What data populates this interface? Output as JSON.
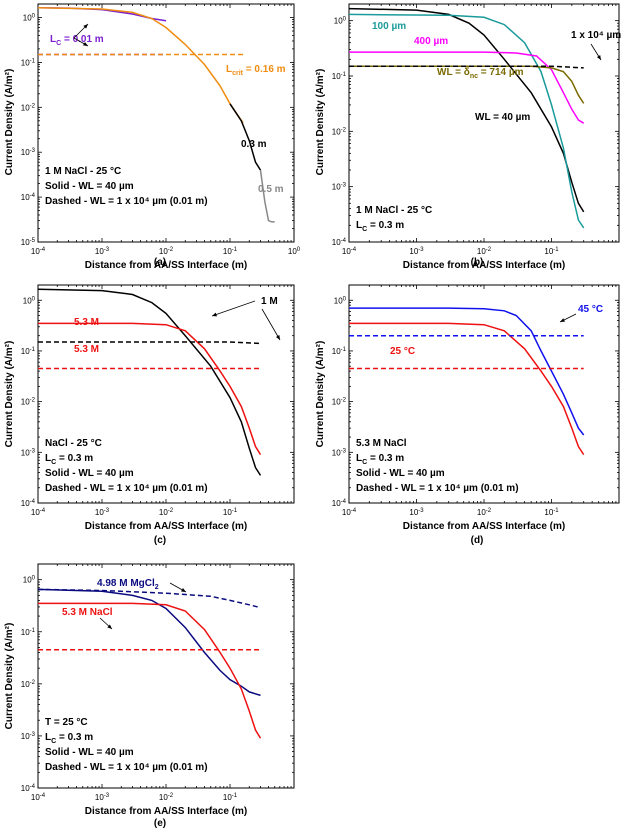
{
  "chart_data": [
    {
      "id": "a",
      "type": "line",
      "panel_label": "(a)",
      "xlabel": "Distance from AA/SS Interface (m)",
      "ylabel": "Current Density (A/m²)",
      "xscale": "log",
      "yscale": "log",
      "xlim": [
        0.0001,
        1
      ],
      "ylim": [
        1e-05,
        2
      ],
      "x_ticks": [
        0.0001,
        0.001,
        0.01,
        0.1,
        1
      ],
      "y_ticks": [
        1e-05,
        0.0001,
        0.001,
        0.01,
        0.1,
        1
      ],
      "series": [
        {
          "color": "#7a1fd0",
          "style": "solid",
          "x": [
            0.0001,
            0.0003,
            0.001,
            0.003,
            0.006,
            0.01
          ],
          "y": [
            1.65,
            1.62,
            1.5,
            1.2,
            0.95,
            0.85
          ]
        },
        {
          "color": "#7a1fd0",
          "style": "dashed",
          "x": [
            0.0001,
            0.001,
            0.01
          ],
          "y": [
            0.15,
            0.15,
            0.15
          ]
        },
        {
          "color": "#f08c10",
          "style": "solid",
          "x": [
            0.0001,
            0.001,
            0.003,
            0.006,
            0.01,
            0.02,
            0.04,
            0.07,
            0.1,
            0.16
          ],
          "y": [
            1.65,
            1.55,
            1.3,
            0.95,
            0.6,
            0.25,
            0.09,
            0.03,
            0.012,
            0.0045
          ]
        },
        {
          "color": "#f08c10",
          "style": "dashed",
          "x": [
            0.0001,
            0.01,
            0.16
          ],
          "y": [
            0.15,
            0.15,
            0.15
          ]
        },
        {
          "color": "#000000",
          "style": "solid",
          "x": [
            0.1,
            0.15,
            0.2,
            0.25,
            0.3
          ],
          "y": [
            0.012,
            0.005,
            0.0018,
            0.0006,
            0.0004
          ]
        },
        {
          "color": "#888888",
          "style": "solid",
          "x": [
            0.3,
            0.35,
            0.4,
            0.45,
            0.5
          ],
          "y": [
            0.0004,
            8e-05,
            3e-05,
            2.8e-05,
            2.8e-05
          ]
        }
      ],
      "annotations": [
        {
          "text": "L",
          "sub": "C",
          "rest": " = 0.01 m",
          "color": "#7a1fd0"
        },
        {
          "text": "L",
          "sub": "crit",
          "rest": " = 0.16 m",
          "color": "#f08c10"
        },
        {
          "text": "0.3 m",
          "color": "#000000"
        },
        {
          "text": "0.5 m",
          "color": "#888888"
        }
      ],
      "legend_text": [
        "1 M NaCl - 25 °C",
        "Solid - WL = 40 µm",
        "Dashed - WL = 1 x 10⁴ µm (0.01 m)"
      ]
    },
    {
      "id": "b",
      "type": "line",
      "panel_label": "(b)",
      "xlabel": "Distance from AA/SS Interface (m)",
      "ylabel": "Current Density (A/m²)",
      "xscale": "log",
      "yscale": "log",
      "xlim": [
        0.0001,
        1
      ],
      "ylim": [
        0.0001,
        2
      ],
      "x_ticks": [
        0.0001,
        0.001,
        0.01,
        0.1
      ],
      "y_ticks": [
        0.0001,
        0.001,
        0.01,
        0.1,
        1
      ],
      "series": [
        {
          "color": "#000000",
          "style": "solid",
          "x": [
            0.0001,
            0.001,
            0.003,
            0.006,
            0.01,
            0.02,
            0.05,
            0.1,
            0.15,
            0.2,
            0.25,
            0.3
          ],
          "y": [
            1.65,
            1.55,
            1.3,
            0.9,
            0.55,
            0.2,
            0.05,
            0.012,
            0.004,
            0.0012,
            0.0005,
            0.00035
          ]
        },
        {
          "color": "#1a9a9a",
          "style": "solid",
          "x": [
            0.0001,
            0.003,
            0.01,
            0.02,
            0.04,
            0.07,
            0.1,
            0.15,
            0.2,
            0.25,
            0.3
          ],
          "y": [
            1.3,
            1.25,
            1.15,
            0.85,
            0.4,
            0.12,
            0.03,
            0.005,
            0.0008,
            0.00025,
            0.00018
          ]
        },
        {
          "color": "#ff00ff",
          "style": "solid",
          "x": [
            0.0001,
            0.01,
            0.03,
            0.06,
            0.1,
            0.15,
            0.2,
            0.25,
            0.3
          ],
          "y": [
            0.27,
            0.27,
            0.26,
            0.23,
            0.13,
            0.05,
            0.025,
            0.016,
            0.014
          ]
        },
        {
          "color": "#7a6a00",
          "style": "solid",
          "x": [
            0.0001,
            0.01,
            0.05,
            0.1,
            0.15,
            0.2,
            0.25,
            0.3
          ],
          "y": [
            0.15,
            0.15,
            0.15,
            0.14,
            0.12,
            0.08,
            0.045,
            0.032
          ]
        },
        {
          "color": "#000000",
          "style": "dashed",
          "x": [
            0.0001,
            0.01,
            0.1,
            0.3
          ],
          "y": [
            0.15,
            0.15,
            0.15,
            0.14
          ]
        }
      ],
      "annotations": [
        {
          "text": "100 µm",
          "color": "#1a9a9a"
        },
        {
          "text": "400 µm",
          "color": "#ff00ff"
        },
        {
          "text": "WL = δ",
          "sub": "nc",
          "rest": " = 714 µm",
          "color": "#7a6a00"
        },
        {
          "text": "1 x 10⁴ µm",
          "color": "#000000"
        },
        {
          "text": "WL = 40 µm",
          "color": "#000000"
        }
      ],
      "legend_text": [
        "1 M NaCl - 25 °C",
        "L_C = 0.3 m"
      ]
    },
    {
      "id": "c",
      "type": "line",
      "panel_label": "(c)",
      "xlabel": "Distance from AA/SS Interface (m)",
      "ylabel": "Current Density (A/m²)",
      "xscale": "log",
      "yscale": "log",
      "xlim": [
        0.0001,
        1
      ],
      "ylim": [
        0.0001,
        2
      ],
      "x_ticks": [
        0.0001,
        0.001,
        0.01,
        0.1
      ],
      "y_ticks": [
        0.0001,
        0.001,
        0.01,
        0.1,
        1
      ],
      "series": [
        {
          "color": "#000000",
          "style": "solid",
          "x": [
            0.0001,
            0.001,
            0.003,
            0.006,
            0.01,
            0.02,
            0.05,
            0.1,
            0.15,
            0.2,
            0.25,
            0.3
          ],
          "y": [
            1.65,
            1.55,
            1.3,
            0.9,
            0.55,
            0.2,
            0.05,
            0.012,
            0.004,
            0.0012,
            0.0005,
            0.00035
          ]
        },
        {
          "color": "#ee1111",
          "style": "solid",
          "x": [
            0.0001,
            0.003,
            0.01,
            0.02,
            0.04,
            0.07,
            0.1,
            0.15,
            0.2,
            0.25,
            0.3
          ],
          "y": [
            0.35,
            0.35,
            0.33,
            0.25,
            0.11,
            0.04,
            0.02,
            0.008,
            0.003,
            0.0013,
            0.0009
          ]
        },
        {
          "color": "#000000",
          "style": "dashed",
          "x": [
            0.0001,
            0.01,
            0.1,
            0.3
          ],
          "y": [
            0.15,
            0.15,
            0.15,
            0.14
          ]
        },
        {
          "color": "#ee1111",
          "style": "dashed",
          "x": [
            0.0001,
            0.3
          ],
          "y": [
            0.045,
            0.045
          ]
        }
      ],
      "annotations": [
        {
          "text": "1 M",
          "color": "#000000"
        },
        {
          "text": "5.3 M",
          "color": "#ee1111"
        },
        {
          "text": "5.3 M",
          "color": "#ee1111"
        }
      ],
      "legend_text": [
        "NaCl - 25 °C",
        "L_C = 0.3 m",
        "Solid - WL = 40 µm",
        "Dashed - WL = 1 x 10⁴ µm (0.01 m)"
      ]
    },
    {
      "id": "d",
      "type": "line",
      "panel_label": "(d)",
      "xlabel": "Distance from AA/SS Interface (m)",
      "ylabel": "Current Density (A/m²)",
      "xscale": "log",
      "yscale": "log",
      "xlim": [
        0.0001,
        1
      ],
      "ylim": [
        0.0001,
        2
      ],
      "x_ticks": [
        0.0001,
        0.001,
        0.01,
        0.1
      ],
      "y_ticks": [
        0.0001,
        0.001,
        0.01,
        0.1,
        1
      ],
      "series": [
        {
          "color": "#1111ee",
          "style": "solid",
          "x": [
            0.0001,
            0.003,
            0.01,
            0.02,
            0.03,
            0.05,
            0.07,
            0.1,
            0.15,
            0.2,
            0.25,
            0.3
          ],
          "y": [
            0.7,
            0.7,
            0.68,
            0.62,
            0.5,
            0.25,
            0.1,
            0.04,
            0.014,
            0.006,
            0.003,
            0.0022
          ]
        },
        {
          "color": "#ee1111",
          "style": "solid",
          "x": [
            0.0001,
            0.003,
            0.01,
            0.02,
            0.04,
            0.07,
            0.1,
            0.15,
            0.2,
            0.25,
            0.3
          ],
          "y": [
            0.35,
            0.35,
            0.33,
            0.25,
            0.11,
            0.04,
            0.02,
            0.008,
            0.003,
            0.0013,
            0.0009
          ]
        },
        {
          "color": "#1111ee",
          "style": "dashed",
          "x": [
            0.0001,
            0.3
          ],
          "y": [
            0.2,
            0.2
          ]
        },
        {
          "color": "#ee1111",
          "style": "dashed",
          "x": [
            0.0001,
            0.3
          ],
          "y": [
            0.045,
            0.045
          ]
        }
      ],
      "annotations": [
        {
          "text": "45 °C",
          "color": "#1111ee"
        },
        {
          "text": "25 °C",
          "color": "#ee1111"
        }
      ],
      "legend_text": [
        "5.3 M NaCl",
        "L_C = 0.3 m",
        "Solid - WL = 40 µm",
        "Dashed - WL = 1 x 10⁴ µm (0.01 m)"
      ]
    },
    {
      "id": "e",
      "type": "line",
      "panel_label": "(e)",
      "xlabel": "Distance from AA/SS Interface (m)",
      "ylabel": "Current Density (A/m²)",
      "xscale": "log",
      "yscale": "log",
      "xlim": [
        0.0001,
        1
      ],
      "ylim": [
        0.0001,
        2
      ],
      "x_ticks": [
        0.0001,
        0.001,
        0.01,
        0.1
      ],
      "y_ticks": [
        0.0001,
        0.001,
        0.01,
        0.1,
        1
      ],
      "series": [
        {
          "color": "#0a0a80",
          "style": "solid",
          "x": [
            0.0001,
            0.001,
            0.003,
            0.006,
            0.01,
            0.02,
            0.04,
            0.07,
            0.1,
            0.15,
            0.2,
            0.3
          ],
          "y": [
            0.65,
            0.6,
            0.5,
            0.4,
            0.28,
            0.12,
            0.04,
            0.018,
            0.012,
            0.009,
            0.007,
            0.006
          ]
        },
        {
          "color": "#ee1111",
          "style": "solid",
          "x": [
            0.0001,
            0.003,
            0.01,
            0.02,
            0.04,
            0.07,
            0.1,
            0.15,
            0.2,
            0.25,
            0.3
          ],
          "y": [
            0.35,
            0.35,
            0.33,
            0.25,
            0.11,
            0.04,
            0.02,
            0.008,
            0.003,
            0.0013,
            0.0009
          ]
        },
        {
          "color": "#0a0a80",
          "style": "dashed",
          "x": [
            0.0001,
            0.001,
            0.01,
            0.05,
            0.1,
            0.2,
            0.3
          ],
          "y": [
            0.65,
            0.62,
            0.55,
            0.48,
            0.4,
            0.33,
            0.29
          ]
        },
        {
          "color": "#ee1111",
          "style": "dashed",
          "x": [
            0.0001,
            0.3
          ],
          "y": [
            0.045,
            0.045
          ]
        }
      ],
      "annotations": [
        {
          "text": "4.98 M MgCl",
          "sub": "2",
          "rest": "",
          "color": "#0a0a80"
        },
        {
          "text": "5.3 M NaCl",
          "color": "#ee1111"
        }
      ],
      "legend_text": [
        "T = 25 °C",
        "L_C = 0.3 m",
        "Solid - WL = 40 µm",
        "Dashed - WL = 1 x 10⁴ µm (0.01 m)"
      ]
    }
  ]
}
